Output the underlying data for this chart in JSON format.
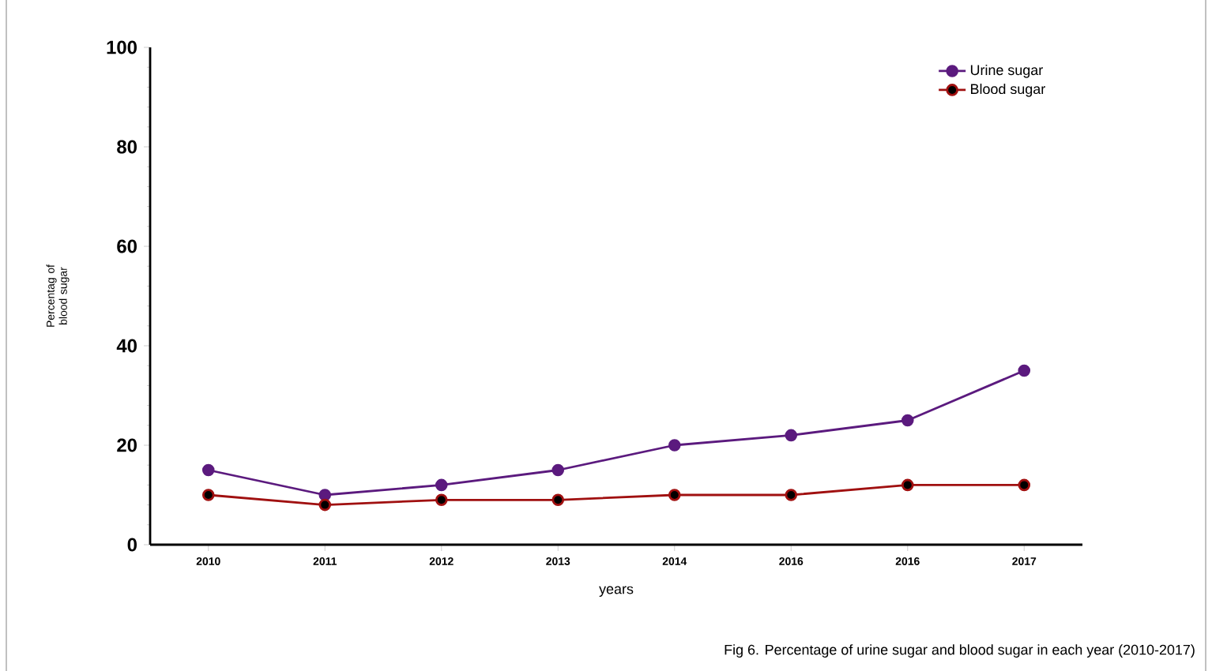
{
  "chart_data": {
    "type": "line",
    "categories": [
      "2010",
      "2011",
      "2012",
      "2013",
      "2014",
      "2016",
      "2016",
      "2017"
    ],
    "series": [
      {
        "name": "Urine sugar",
        "color": "#5b1a7e",
        "values": [
          15,
          10,
          12,
          15,
          20,
          22,
          25,
          35
        ]
      },
      {
        "name": "Blood sugar",
        "color": "#a01010",
        "values": [
          10,
          8,
          9,
          9,
          10,
          10,
          12,
          12
        ]
      }
    ],
    "ylim": [
      0,
      100
    ],
    "yticks": [
      0,
      20,
      40,
      60,
      80,
      100
    ],
    "xlabel": "years",
    "ylabel": "Percentag of blood sugar",
    "annotations": [
      "Fig 6.  Percentage of  urine  sugar and blood sugar in each year  (2010-2017)"
    ],
    "legend": "top right",
    "marker": "circle",
    "line_style": "solid",
    "grid": false
  }
}
